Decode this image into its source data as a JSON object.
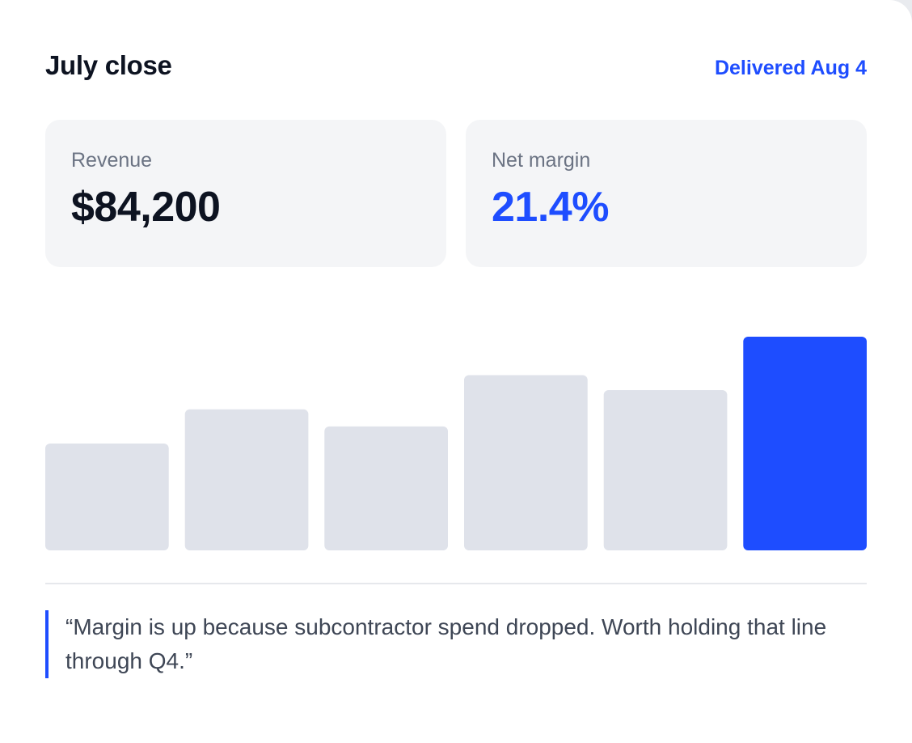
{
  "header": {
    "title": "July close",
    "delivered_label": "Delivered Aug 4"
  },
  "stats": {
    "revenue": {
      "label": "Revenue",
      "value": "$84,200"
    },
    "net_margin": {
      "label": "Net margin",
      "value": "21.4%"
    }
  },
  "colors": {
    "accent": "#1e4dff",
    "bar_muted": "#dfe2ea",
    "card_bg": "#f4f5f7"
  },
  "chart_data": {
    "type": "bar",
    "values": [
      0.5,
      0.66,
      0.58,
      0.82,
      0.75,
      1.0
    ],
    "highlight_index": 5,
    "ylim": [
      0,
      1
    ],
    "grid": false,
    "axes_visible": false
  },
  "note": {
    "quote": "“Margin is up because subcontractor spend dropped. Worth holding that line through Q4.”"
  }
}
